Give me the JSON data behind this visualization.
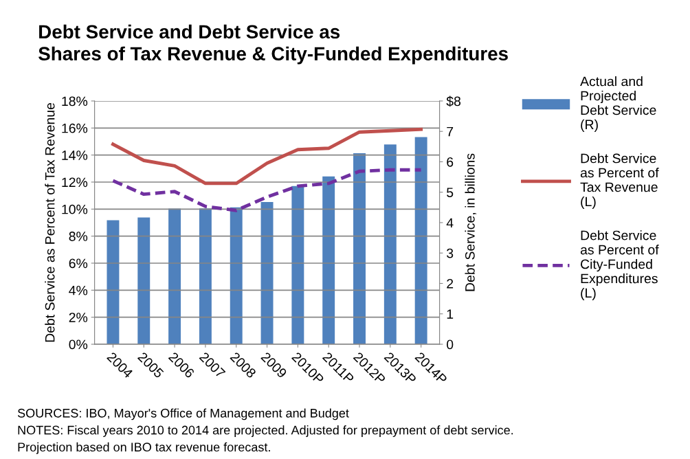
{
  "chart_data": {
    "type": "bar",
    "title": "Debt Service and Debt Service as\nShares of Tax Revenue & City-Funded Expenditures",
    "categories": [
      "2004",
      "2005",
      "2006",
      "2007",
      "2008",
      "2009",
      "2010P",
      "2011P",
      "2012P",
      "2013P",
      "2014P"
    ],
    "series": [
      {
        "name": "Actual and Projected Debt Service (R)",
        "axis": "y2",
        "color": "#4f81bd",
        "values": [
          4.08,
          4.17,
          4.46,
          4.47,
          4.5,
          4.68,
          5.2,
          5.52,
          6.28,
          6.57,
          6.81
        ]
      },
      {
        "name": "Debt Service as Percent of Tax Revenue (L)",
        "type": "line",
        "color": "#c0504d",
        "line_style": "solid",
        "values": [
          14.8,
          13.6,
          13.2,
          11.9,
          11.9,
          13.4,
          14.4,
          14.5,
          15.7,
          15.8,
          15.9
        ]
      },
      {
        "name": "Debt Service as Percent of City-Funded Expenditures (L)",
        "type": "line",
        "color": "#7030a0",
        "line_style": "dashed",
        "values": [
          12.1,
          11.1,
          11.3,
          10.2,
          9.9,
          10.9,
          11.7,
          11.9,
          12.8,
          12.9,
          12.9
        ]
      }
    ],
    "ylabel": "Debt Service as Percent of Tax Revenue",
    "y2label": "Debt Service, in billions",
    "ylim": [
      0,
      18
    ],
    "yticks": [
      {
        "value": 0,
        "label": "0%"
      },
      {
        "value": 2,
        "label": "2%"
      },
      {
        "value": 4,
        "label": "4%"
      },
      {
        "value": 6,
        "label": "6%"
      },
      {
        "value": 8,
        "label": "8%"
      },
      {
        "value": 10,
        "label": "10%"
      },
      {
        "value": 12,
        "label": "12%"
      },
      {
        "value": 14,
        "label": "14%"
      },
      {
        "value": 16,
        "label": "16%"
      },
      {
        "value": 18,
        "label": "18%"
      }
    ],
    "y2lim": [
      0,
      8
    ],
    "y2ticks": [
      0,
      1,
      2,
      3,
      4,
      5,
      6,
      7,
      {
        "value": 8,
        "label": "$8"
      }
    ],
    "grid": "y",
    "legend": "right",
    "marker": "none",
    "annotations": [
      "SOURCES: IBO, Mayor's Office of Management and Budget",
      "NOTES: Fiscal years 2010 to 2014 are projected. Adjusted for prepayment of debt service.",
      "Projection based on IBO tax revenue forecast."
    ]
  }
}
